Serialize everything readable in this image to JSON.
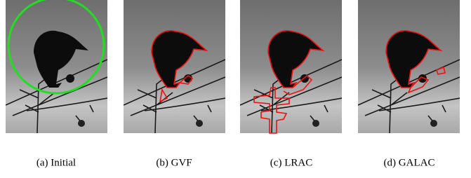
{
  "captions": [
    "(a) Initial",
    "(b) GVF",
    "(c) LRAC",
    "(d) GALAC"
  ]
}
